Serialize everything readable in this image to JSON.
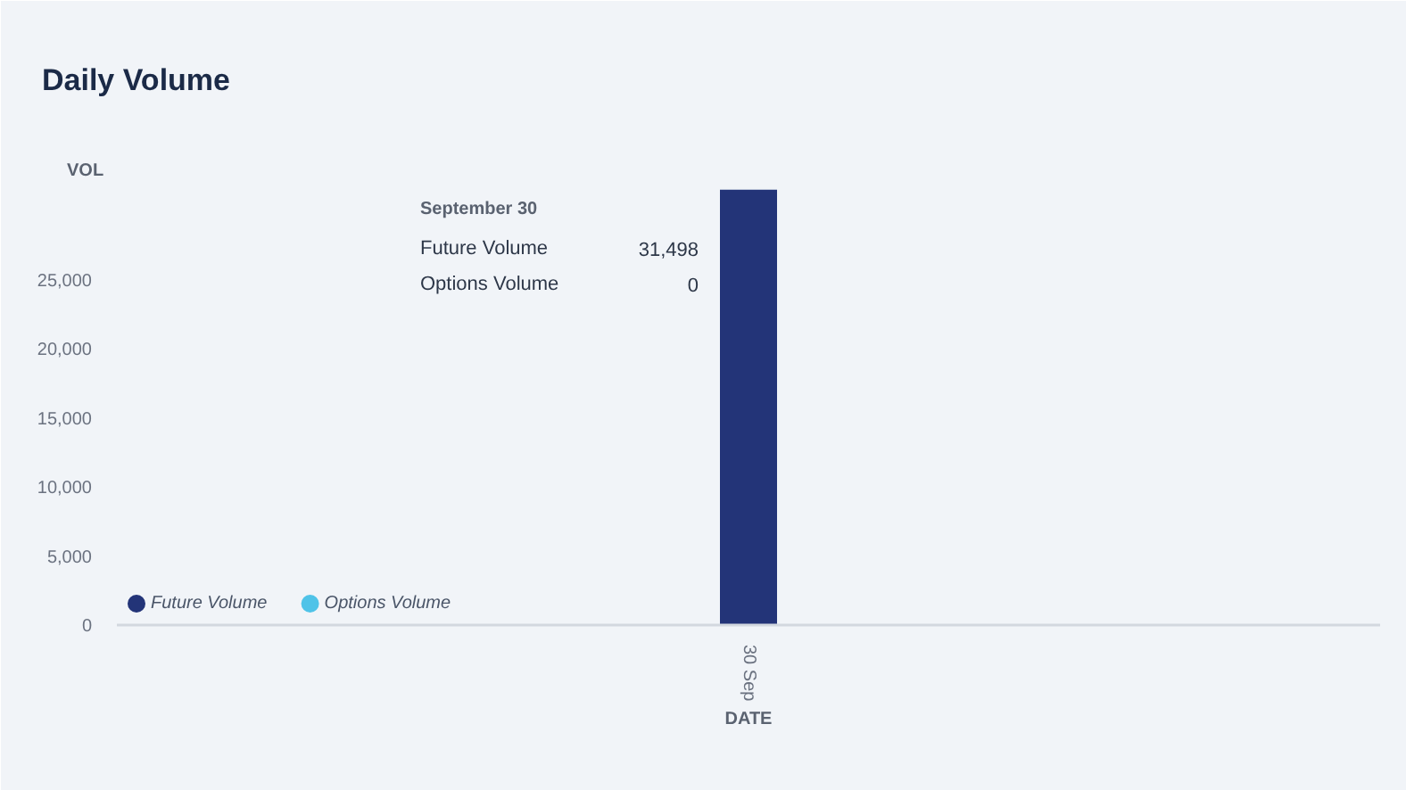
{
  "chart_data": {
    "type": "bar",
    "title": "Daily Volume",
    "xlabel": "DATE",
    "ylabel": "VOL",
    "categories": [
      "30 Sep"
    ],
    "stacked": true,
    "series": [
      {
        "name": "Future Volume",
        "color": "#233478",
        "values": [
          31498
        ]
      },
      {
        "name": "Options Volume",
        "color": "#4fc3e8",
        "values": [
          0
        ]
      }
    ],
    "ylim": [
      0,
      32000
    ],
    "yticks": [
      0,
      {
        "value": 5000,
        "label": "5,000"
      },
      {
        "value": 10000,
        "label": "10,000"
      },
      {
        "value": 15000,
        "label": "15,000"
      },
      {
        "value": 20000,
        "label": "20,000"
      },
      {
        "value": 25000,
        "label": "25,000"
      }
    ],
    "grid": false,
    "legend": "bottom left",
    "annotations": [
      "September 30",
      "Future Volume",
      "31,498",
      "Options Volume",
      "0"
    ]
  }
}
